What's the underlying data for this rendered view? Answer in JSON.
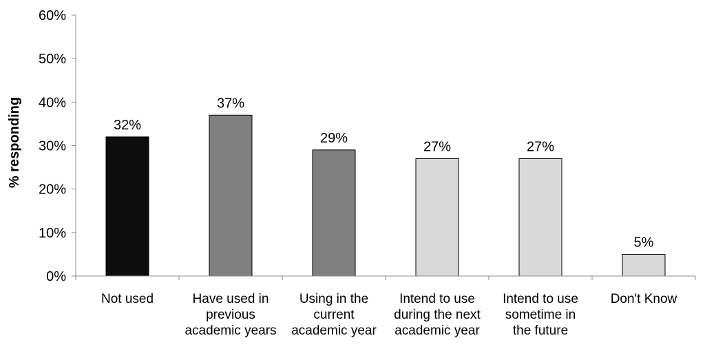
{
  "chart_data": {
    "type": "bar",
    "title": "",
    "xlabel": "",
    "ylabel": "% responding",
    "ylim": [
      0,
      60
    ],
    "yticks": [
      "0%",
      "10%",
      "20%",
      "30%",
      "40%",
      "50%",
      "60%"
    ],
    "grid": false,
    "legend": "none",
    "categories": [
      [
        "Not used"
      ],
      [
        "Have used in",
        "previous",
        "academic years"
      ],
      [
        "Using in the",
        "current",
        "academic year"
      ],
      [
        "Intend to use",
        "during the next",
        "academic year"
      ],
      [
        "Intend to use",
        "sometime in",
        "the future"
      ],
      [
        "Don't Know"
      ]
    ],
    "values": [
      32,
      37,
      29,
      27,
      27,
      5
    ],
    "data_labels": [
      "32%",
      "37%",
      "29%",
      "27%",
      "27%",
      "5%"
    ],
    "bar_colors": [
      "#0d0d0d",
      "#808080",
      "#808080",
      "#d9d9d9",
      "#d9d9d9",
      "#d9d9d9"
    ]
  }
}
